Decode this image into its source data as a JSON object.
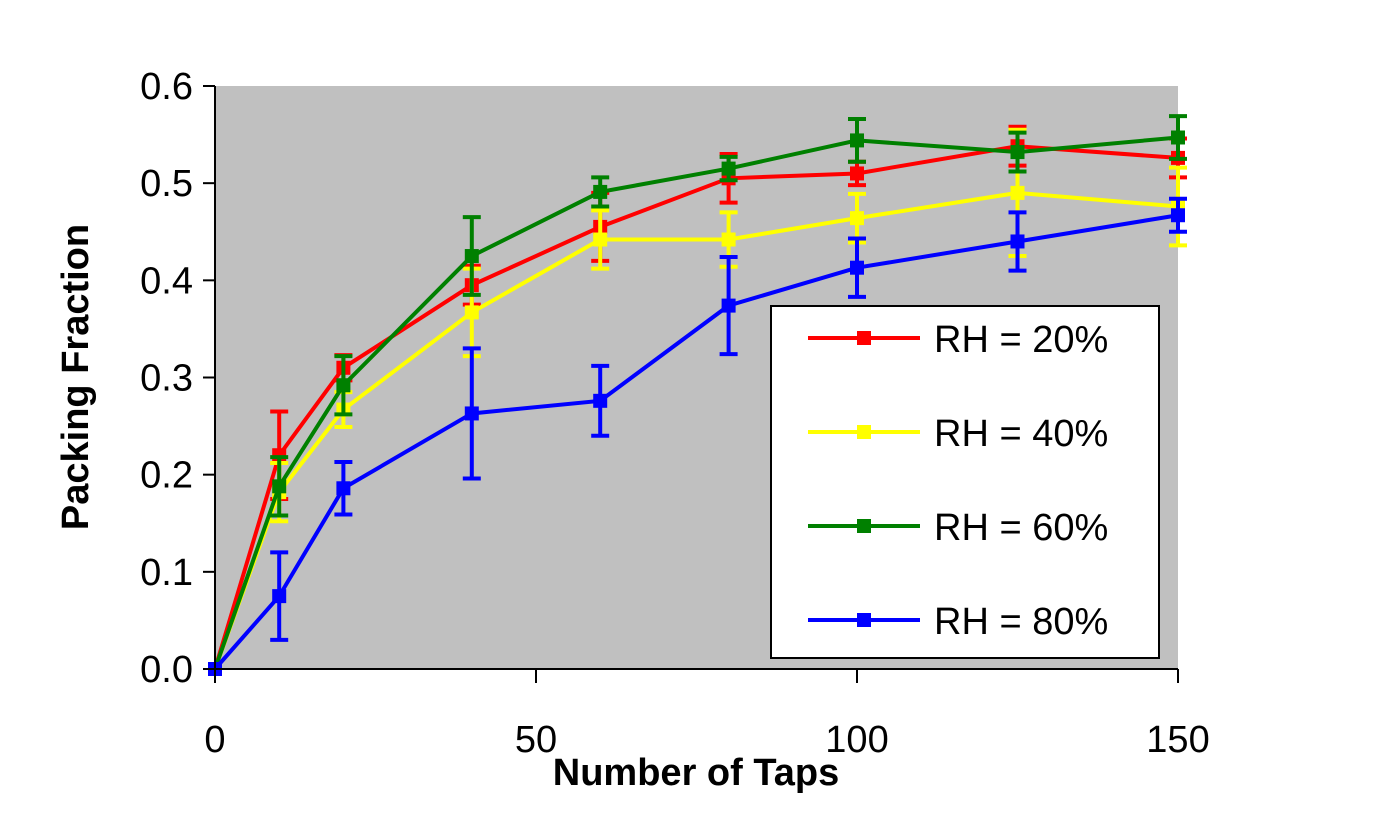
{
  "chart_data": {
    "type": "line",
    "xlabel": "Number of Taps",
    "ylabel": "Packing Fraction",
    "xlim": [
      0,
      150
    ],
    "ylim": [
      0,
      0.6
    ],
    "xticks": [
      0,
      50,
      100,
      150
    ],
    "xtick_labels": [
      "0",
      "50",
      "100",
      "150"
    ],
    "yticks": [
      0,
      0.1,
      0.2,
      0.3,
      0.4,
      0.5,
      0.6
    ],
    "ytick_labels": [
      "0.0",
      "0.1",
      "0.2",
      "0.3",
      "0.4",
      "0.5",
      "0.6"
    ],
    "plot_background": "#c0c0c0",
    "grid": false,
    "legend_position": "lower-right",
    "x": [
      0,
      10,
      20,
      40,
      60,
      80,
      100,
      125,
      150
    ],
    "series": [
      {
        "name": "RH = 20%",
        "color": "#ff0000",
        "values": [
          0.0,
          0.22,
          0.31,
          0.395,
          0.455,
          0.505,
          0.51,
          0.538,
          0.526
        ],
        "errors": [
          0.0,
          0.045,
          0.013,
          0.02,
          0.035,
          0.025,
          0.012,
          0.02,
          0.02
        ]
      },
      {
        "name": "RH = 40%",
        "color": "#ffff00",
        "values": [
          0.0,
          0.182,
          0.267,
          0.367,
          0.442,
          0.442,
          0.464,
          0.49,
          0.476
        ],
        "errors": [
          0.0,
          0.03,
          0.018,
          0.045,
          0.03,
          0.028,
          0.025,
          0.065,
          0.04
        ]
      },
      {
        "name": "RH = 60%",
        "color": "#008000",
        "values": [
          0.0,
          0.188,
          0.292,
          0.425,
          0.491,
          0.515,
          0.544,
          0.532,
          0.547
        ],
        "errors": [
          0.0,
          0.03,
          0.03,
          0.04,
          0.015,
          0.012,
          0.022,
          0.02,
          0.022
        ]
      },
      {
        "name": "RH = 80%",
        "color": "#0000ff",
        "values": [
          0.0,
          0.075,
          0.186,
          0.263,
          0.276,
          0.374,
          0.413,
          0.44,
          0.467
        ],
        "errors": [
          0.0,
          0.045,
          0.027,
          0.067,
          0.036,
          0.05,
          0.03,
          0.03,
          0.017
        ]
      }
    ]
  }
}
